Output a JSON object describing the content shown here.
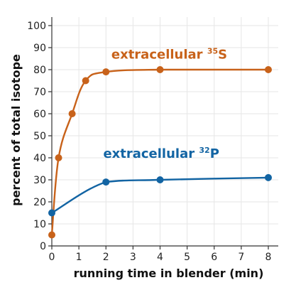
{
  "chart_data": {
    "type": "line",
    "title": "",
    "xlabel": "running time in blender (min)",
    "ylabel": "percent of total isotope",
    "xlim": [
      0,
      8
    ],
    "ylim": [
      0,
      100
    ],
    "xticks": [
      0,
      1,
      2,
      3,
      4,
      5,
      6,
      7,
      8
    ],
    "yticks": [
      0,
      10,
      20,
      30,
      40,
      50,
      60,
      70,
      80,
      90,
      100
    ],
    "grid": true,
    "legend": "none",
    "series": [
      {
        "name": "extracellular",
        "isotope": "35S",
        "isotope_mass": "35",
        "isotope_symbol": "S",
        "color": "#c8621a",
        "label_position": [
          2.2,
          85
        ],
        "x": [
          0,
          0.25,
          0.75,
          1.25,
          2,
          4,
          8
        ],
        "y": [
          5,
          40,
          60,
          75,
          79,
          80,
          80
        ]
      },
      {
        "name": "extracellular",
        "isotope": "32P",
        "isotope_mass": "32",
        "isotope_symbol": "P",
        "color": "#1264a3",
        "label_position": [
          1.9,
          40
        ],
        "x": [
          0,
          2,
          4,
          8
        ],
        "y": [
          15,
          29,
          30,
          31
        ]
      }
    ]
  }
}
